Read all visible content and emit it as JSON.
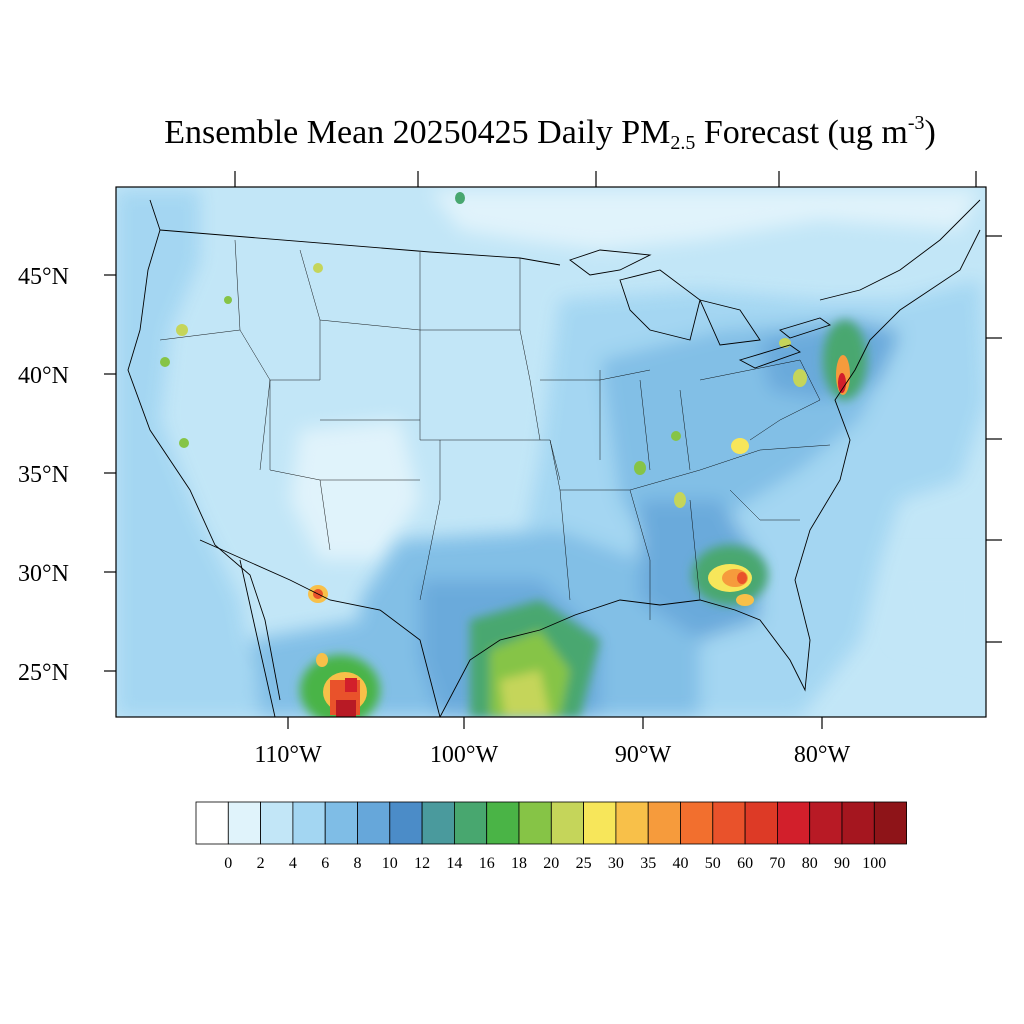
{
  "title": {
    "main": "Ensemble Mean 20250425 Daily PM",
    "sub": "2.5",
    "rest": " Forecast (ug m",
    "sup": "-3",
    "close": ")"
  },
  "lat_labels": [
    "45°N",
    "40°N",
    "35°N",
    "30°N",
    "25°N"
  ],
  "lon_labels": [
    "110°W",
    "100°W",
    "90°W",
    "80°W"
  ],
  "colorbar": {
    "colors": [
      "#ffffff",
      "#e0f3fb",
      "#c2e6f7",
      "#a3d6f2",
      "#7fbde6",
      "#66a7da",
      "#4b8cc8",
      "#4a9a9d",
      "#48a76f",
      "#4ab446",
      "#86c446",
      "#c5d55a",
      "#f7e65a",
      "#f8c049",
      "#f69b3c",
      "#f26f2e",
      "#e9522b",
      "#dd3a26",
      "#d21f2b",
      "#b81a25",
      "#a5161f",
      "#8e1418"
    ],
    "labels": [
      "0",
      "2",
      "4",
      "6",
      "8",
      "10",
      "12",
      "14",
      "16",
      "18",
      "20",
      "25",
      "30",
      "35",
      "40",
      "50",
      "60",
      "70",
      "80",
      "90",
      "100"
    ]
  },
  "map_data": {
    "background_level": "2-6",
    "hotspots": [
      {
        "name": "NJ / Philadelphia corridor",
        "level": "60-70"
      },
      {
        "name": "Southern Georgia",
        "level": "35-40"
      },
      {
        "name": "Northern Mexico (Chihuahua/Durango)",
        "level": "60-80"
      },
      {
        "name": "El Paso / Juarez",
        "level": "35-40"
      },
      {
        "name": "South Texas plume",
        "level": "20-25"
      }
    ]
  }
}
